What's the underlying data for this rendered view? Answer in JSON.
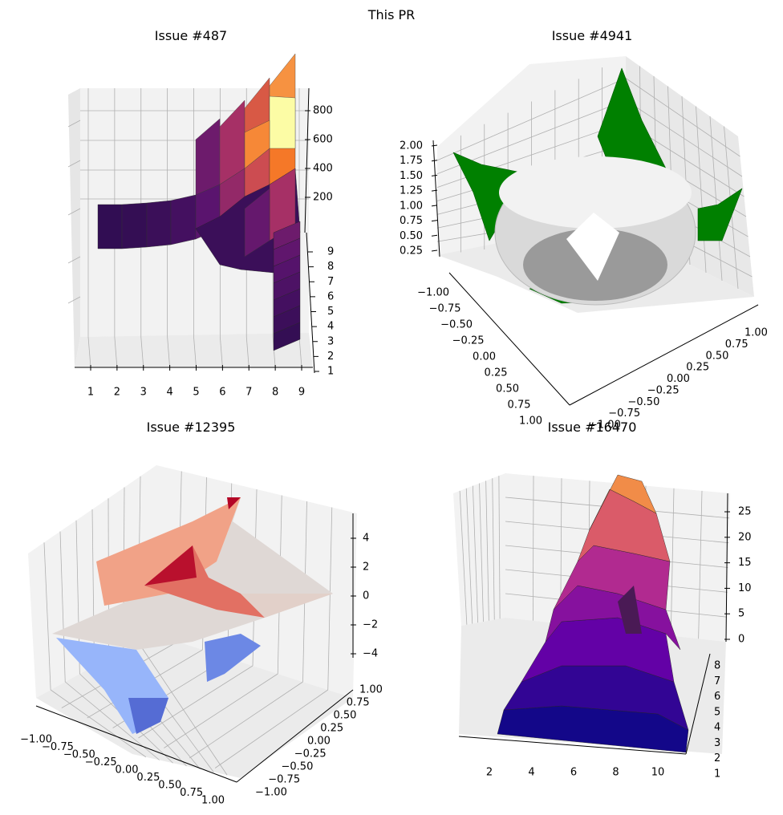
{
  "figure": {
    "suptitle": "This PR"
  },
  "chart_data": [
    {
      "type": "surface3d",
      "title": "Issue #487",
      "colormap": "magma",
      "x_ticks": [
        "1",
        "2",
        "3",
        "4",
        "5",
        "6",
        "7",
        "8",
        "9"
      ],
      "y_ticks": [
        "1",
        "2",
        "3",
        "4",
        "5",
        "6",
        "7",
        "8",
        "9"
      ],
      "z_ticks": [
        "200",
        "400",
        "600",
        "800"
      ],
      "note_values": "z grows roughly exponentially toward x=9 (max ≈ 900)",
      "zlim": [
        0,
        900
      ]
    },
    {
      "type": "surface3d",
      "title": "Issue #4941",
      "colormap": "gray",
      "outer_color": "#008000",
      "x_ticks": [
        "−1.00",
        "−0.75",
        "−0.50",
        "−0.25",
        "0.00",
        "0.25",
        "0.50",
        "0.75",
        "1.00"
      ],
      "y_ticks": [
        "−1.00",
        "−0.75",
        "−0.50",
        "−0.25",
        "0.00",
        "0.25",
        "0.50",
        "0.75",
        "1.00"
      ],
      "z_ticks": [
        "0.25",
        "0.50",
        "0.75",
        "1.00",
        "1.25",
        "1.50",
        "1.75",
        "2.00"
      ],
      "zlim": [
        0,
        2
      ]
    },
    {
      "type": "surface3d",
      "title": "Issue #12395",
      "colormap": "coolwarm",
      "x_ticks": [
        "−1.00",
        "−0.75",
        "−0.50",
        "−0.25",
        "0.00",
        "0.25",
        "0.50",
        "0.75",
        "1.00"
      ],
      "y_ticks": [
        "−1.00",
        "−0.75",
        "−0.50",
        "−0.25",
        "0.00",
        "0.25",
        "0.50",
        "0.75",
        "1.00"
      ],
      "z_ticks": [
        "−4",
        "−2",
        "0",
        "2",
        "4"
      ],
      "zlim": [
        -5,
        5
      ]
    },
    {
      "type": "surface3d",
      "title": "Issue #16470",
      "colormap": "plasma",
      "x_ticks": [
        "2",
        "4",
        "6",
        "8",
        "10"
      ],
      "y_ticks": [
        "1",
        "2",
        "3",
        "4",
        "5",
        "6",
        "7",
        "8"
      ],
      "z_ticks": [
        "0",
        "5",
        "10",
        "15",
        "20",
        "25"
      ],
      "zlim": [
        0,
        28
      ]
    }
  ]
}
